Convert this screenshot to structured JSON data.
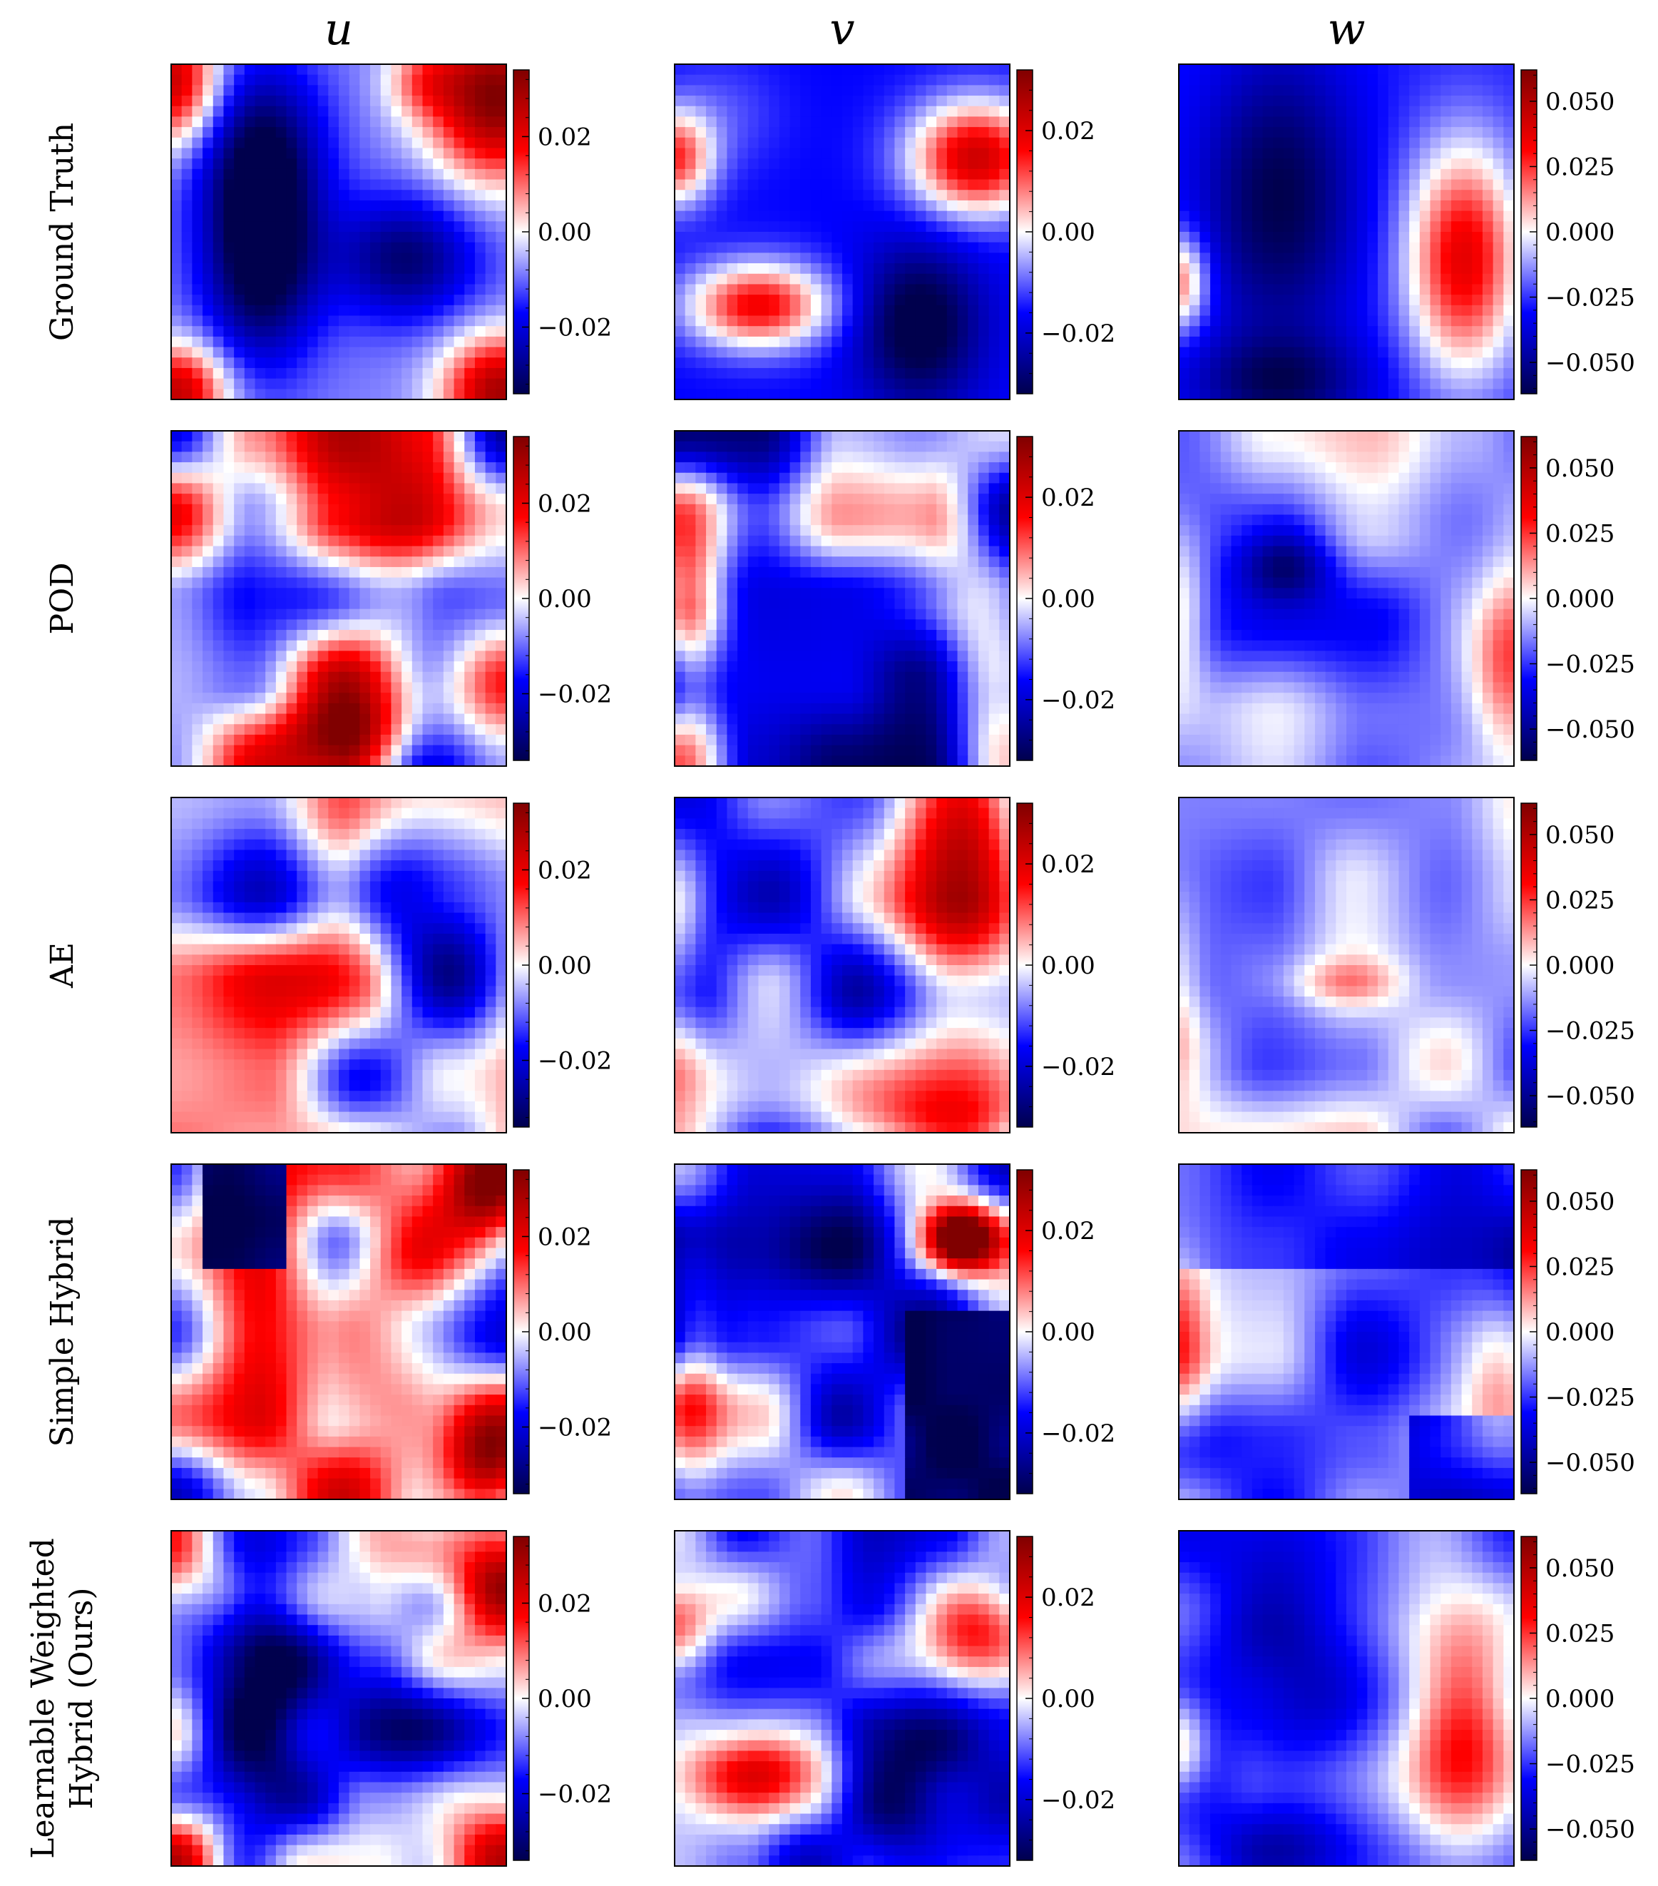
{
  "chart_data": {
    "type": "heatmap",
    "colormap": "seismic",
    "grid_resolution": 32,
    "columns": [
      {
        "label": "u",
        "ticks": [
          0.02,
          0.0,
          -0.02
        ],
        "tick_labels": [
          "0.02",
          "0.00",
          "−0.02"
        ],
        "vmin": -0.034,
        "vmax": 0.034
      },
      {
        "label": "v",
        "ticks": [
          0.02,
          0.0,
          -0.02
        ],
        "tick_labels": [
          "0.02",
          "0.00",
          "−0.02"
        ],
        "vmin": -0.032,
        "vmax": 0.032
      },
      {
        "label": "w",
        "ticks": [
          0.05,
          0.025,
          0.0,
          -0.025,
          -0.05
        ],
        "tick_labels": [
          "0.050",
          "0.025",
          "0.000",
          "−0.025",
          "−0.050"
        ],
        "vmin": -0.062,
        "vmax": 0.062
      }
    ],
    "rows": [
      {
        "label_lines": [
          "Ground Truth"
        ]
      },
      {
        "label_lines": [
          "POD"
        ]
      },
      {
        "label_lines": [
          "AE"
        ]
      },
      {
        "label_lines": [
          "Simple Hybrid"
        ]
      },
      {
        "label_lines": [
          "Learnable Weighted",
          "Hybrid (Ours)"
        ]
      }
    ]
  }
}
